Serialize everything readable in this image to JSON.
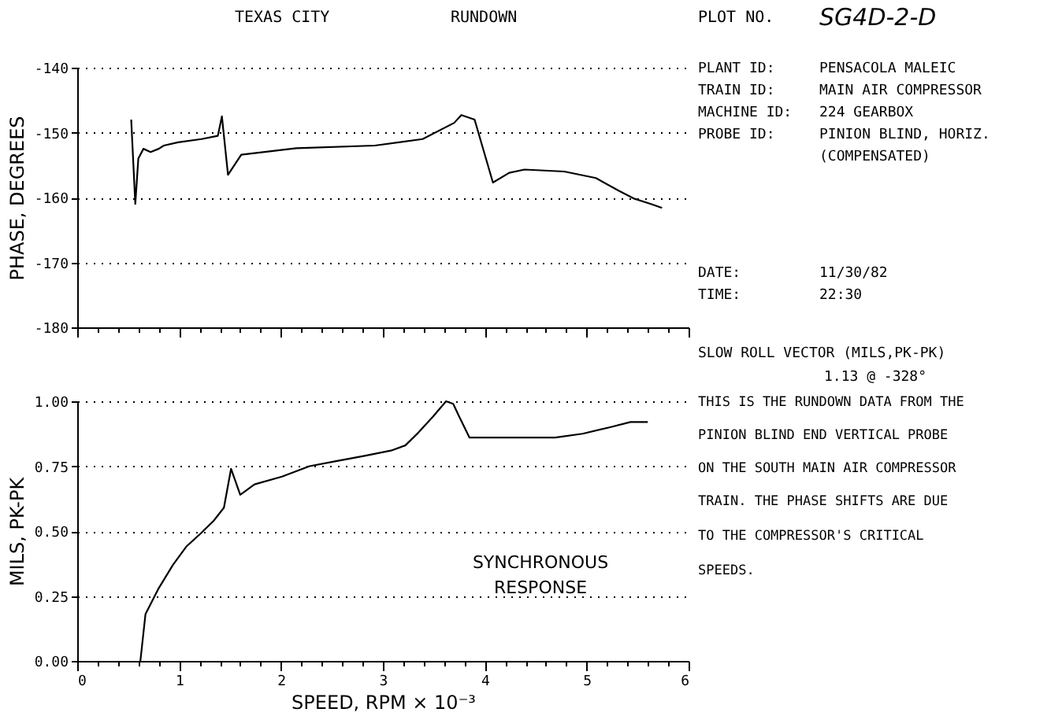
{
  "chart_data": [
    {
      "type": "line",
      "ylabel": "PHASE, DEGREES",
      "color": "#000000",
      "grid": "y",
      "tick_labels": "y",
      "x": [
        0.53,
        0.57,
        0.6,
        0.65,
        0.72,
        0.8,
        0.85,
        0.99,
        1.22,
        1.38,
        1.42,
        1.48,
        1.61,
        2.15,
        2.92,
        3.39,
        3.7,
        3.77,
        3.9,
        4.0,
        4.08,
        4.24,
        4.39,
        4.78,
        5.09,
        5.32,
        5.47,
        5.63,
        5.74
      ],
      "values": [
        -148,
        -161,
        -154,
        -152.5,
        -153,
        -152.5,
        -152,
        -151.5,
        -151,
        -150.5,
        -147.5,
        -156.5,
        -153.4,
        -152.4,
        -152,
        -151,
        -148.5,
        -147.3,
        -148,
        -153.4,
        -157.7,
        -156.2,
        -155.7,
        -156,
        -157,
        -159,
        -160.2,
        -161,
        -161.6
      ],
      "xlim": [
        0,
        6
      ],
      "ylim": [
        -180,
        -140
      ],
      "yticks": [
        -140,
        -150,
        -160,
        -170,
        -180
      ],
      "xticks": [
        0,
        {
          "value": 0.2,
          "label": null
        },
        {
          "value": 0.4,
          "label": null
        },
        {
          "value": 0.6,
          "label": null
        },
        {
          "value": 0.8,
          "label": null
        },
        1,
        {
          "value": 1.2,
          "label": null
        },
        {
          "value": 1.4,
          "label": null
        },
        {
          "value": 1.6,
          "label": null
        },
        {
          "value": 1.8,
          "label": null
        },
        2,
        {
          "value": 2.2,
          "label": null
        },
        {
          "value": 2.4,
          "label": null
        },
        {
          "value": 2.6,
          "label": null
        },
        {
          "value": 2.8,
          "label": null
        },
        3,
        {
          "value": 3.2,
          "label": null
        },
        {
          "value": 3.4,
          "label": null
        },
        {
          "value": 3.6,
          "label": null
        },
        {
          "value": 3.8,
          "label": null
        },
        4,
        {
          "value": 4.2,
          "label": null
        },
        {
          "value": 4.4,
          "label": null
        },
        {
          "value": 4.6,
          "label": null
        },
        {
          "value": 4.8,
          "label": null
        },
        5,
        {
          "value": 5.2,
          "label": null
        },
        {
          "value": 5.4,
          "label": null
        },
        {
          "value": 5.6,
          "label": null
        },
        {
          "value": 5.8,
          "label": null
        },
        6
      ],
      "annotations": [
        "TEXAS CITY",
        "RUNDOWN",
        "PLOT NO.",
        "SG4D-2-D",
        "PLANT ID:",
        "PENSACOLA MALEIC",
        "TRAIN ID:",
        "MAIN AIR COMPRESSOR",
        "MACHINE ID:",
        "224 GEARBOX",
        "PROBE ID:",
        "PINION BLIND, HORIZ.",
        "(COMPENSATED)",
        "DATE:",
        "11/30/82",
        "TIME:",
        "22:30"
      ]
    },
    {
      "type": "line",
      "ylabel": "MILS, PK-PK",
      "xlabel": "SPEED, RPM × 10⁻³",
      "color": "#000000",
      "grid": "y",
      "x": [
        0.62,
        0.67,
        0.8,
        0.94,
        1.07,
        1.21,
        1.34,
        1.44,
        1.51,
        1.6,
        1.74,
        2.01,
        2.28,
        2.55,
        2.82,
        3.08,
        3.22,
        3.35,
        3.49,
        3.62,
        3.69,
        3.75,
        3.85,
        4.16,
        4.42,
        4.69,
        4.96,
        5.23,
        5.43,
        5.6
      ],
      "values": [
        0,
        0.18,
        0.28,
        0.37,
        0.44,
        0.49,
        0.54,
        0.59,
        0.74,
        0.64,
        0.68,
        0.71,
        0.75,
        0.77,
        0.79,
        0.81,
        0.83,
        0.88,
        0.94,
        1.0,
        0.99,
        0.94,
        0.86,
        0.86,
        0.86,
        0.86,
        0.875,
        0.9,
        0.92,
        0.92
      ],
      "xlim": [
        0,
        6
      ],
      "ylim": [
        0,
        1
      ],
      "yticks": [
        {
          "value": 0,
          "label": "0.00"
        },
        0.25,
        {
          "value": 0.5,
          "label": "0.50"
        },
        0.75,
        {
          "value": 1,
          "label": "1.00"
        }
      ],
      "xticks": [
        0,
        {
          "value": 0.2,
          "label": null
        },
        {
          "value": 0.4,
          "label": null
        },
        {
          "value": 0.6,
          "label": null
        },
        {
          "value": 0.8,
          "label": null
        },
        1,
        {
          "value": 1.2,
          "label": null
        },
        {
          "value": 1.4,
          "label": null
        },
        {
          "value": 1.6,
          "label": null
        },
        {
          "value": 1.8,
          "label": null
        },
        2,
        {
          "value": 2.2,
          "label": null
        },
        {
          "value": 2.4,
          "label": null
        },
        {
          "value": 2.6,
          "label": null
        },
        {
          "value": 2.8,
          "label": null
        },
        3,
        {
          "value": 3.2,
          "label": null
        },
        {
          "value": 3.4,
          "label": null
        },
        {
          "value": 3.6,
          "label": null
        },
        {
          "value": 3.8,
          "label": null
        },
        4,
        {
          "value": 4.2,
          "label": null
        },
        {
          "value": 4.4,
          "label": null
        },
        {
          "value": 4.6,
          "label": null
        },
        {
          "value": 4.8,
          "label": null
        },
        5,
        {
          "value": 5.2,
          "label": null
        },
        {
          "value": 5.4,
          "label": null
        },
        {
          "value": 5.6,
          "label": null
        },
        {
          "value": 5.8,
          "label": null
        },
        6
      ],
      "annotations": [
        "SLOW ROLL VECTOR (MILS,PK-PK)",
        "1.13 @ -328°",
        "THIS IS THE RUNDOWN DATA FROM THE",
        "PINION BLIND END VERTICAL PROBE",
        "ON THE SOUTH MAIN AIR COMPRESSOR",
        "TRAIN. THE PHASE SHIFTS ARE DUE",
        "TO THE COMPRESSOR'S CRITICAL",
        "SPEEDS.",
        "SYNCHRONOUS",
        "RESPONSE"
      ]
    }
  ]
}
